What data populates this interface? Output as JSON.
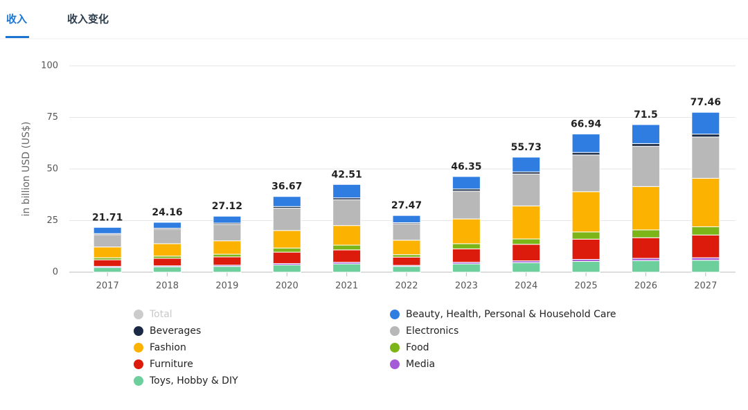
{
  "tabs": [
    "收入",
    "收入变化"
  ],
  "chart_data": {
    "type": "stacked-bar",
    "y_label": "in billion USD (US$)",
    "categories": [
      "2017",
      "2018",
      "2019",
      "2020",
      "2021",
      "2022",
      "2023",
      "2024",
      "2025",
      "2026",
      "2027"
    ],
    "total": {
      "name": "Total",
      "color": "#cccccc",
      "values": [
        21.71,
        24.16,
        27.12,
        36.67,
        42.51,
        27.47,
        46.35,
        55.73,
        66.94,
        71.5,
        77.46
      ]
    },
    "series": [
      {
        "name": "Beauty, Health, Personal & Household Care",
        "color": "#2f7de1",
        "values": [
          3.01,
          2.86,
          3.32,
          4.87,
          6.51,
          3.47,
          6.05,
          7.13,
          8.94,
          9.2,
          10.56
        ]
      },
      {
        "name": "Beverages",
        "color": "#1a2a44",
        "values": [
          0.5,
          0.5,
          0.6,
          0.8,
          0.9,
          0.5,
          1.0,
          1.0,
          1.2,
          1.3,
          1.4
        ]
      },
      {
        "name": "Electronics",
        "color": "#b8b8b8",
        "values": [
          6.0,
          7.0,
          8.0,
          10.8,
          12.5,
          8.0,
          13.5,
          15.5,
          17.8,
          19.5,
          20.0
        ]
      },
      {
        "name": "Fashion",
        "color": "#fbb200",
        "values": [
          5.2,
          6.0,
          6.5,
          8.5,
          9.5,
          7.0,
          12.0,
          16.0,
          19.5,
          21.0,
          23.5
        ]
      },
      {
        "name": "Food",
        "color": "#7cb518",
        "values": [
          1.0,
          1.1,
          1.3,
          2.0,
          2.3,
          1.2,
          2.5,
          2.6,
          3.5,
          3.8,
          4.0
        ]
      },
      {
        "name": "Furniture",
        "color": "#dd1b0d",
        "values": [
          3.2,
          3.6,
          4.0,
          5.5,
          6.0,
          4.0,
          6.5,
          8.0,
          9.8,
          10.0,
          11.0
        ]
      },
      {
        "name": "Media",
        "color": "#a65bd6",
        "values": [
          0.5,
          0.5,
          0.6,
          0.7,
          0.8,
          0.5,
          0.8,
          0.9,
          1.0,
          1.1,
          1.2
        ]
      },
      {
        "name": "Toys, Hobby & DIY",
        "color": "#6ccf9c",
        "values": [
          2.3,
          2.6,
          2.8,
          3.5,
          4.0,
          2.8,
          4.0,
          4.6,
          5.2,
          5.6,
          5.8
        ]
      }
    ],
    "ylim": [
      0,
      100
    ],
    "yticks": [
      0,
      25,
      50,
      75,
      100
    ],
    "grid": true
  }
}
